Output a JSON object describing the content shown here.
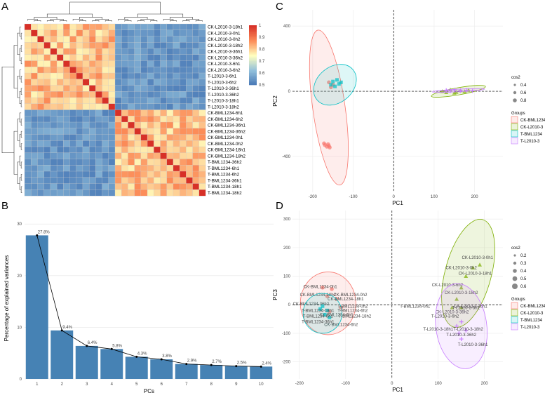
{
  "panel_labels": {
    "a": "A",
    "b": "B",
    "c": "C",
    "d": "D"
  },
  "chart_data": [
    {
      "id": "A",
      "type": "heatmap",
      "title": "",
      "colorbar": {
        "min": 0.5,
        "max": 1,
        "ticks": [
          "1",
          "0.9",
          "0.8",
          "0.7",
          "0.6",
          "0.5"
        ],
        "colors": [
          "#4575b4",
          "#91bfdb",
          "#ffffbf",
          "#fc8d59",
          "#d73027"
        ]
      },
      "rows": [
        "CK-L2010-3-18h1",
        "CK-L2010-3-0h1",
        "CK-L2010-3-0h2",
        "CK-L2010-3-18h2",
        "CK-L2010-3-36h1",
        "CK-L2010-3-36h2",
        "CK-L2010-3-6h1",
        "CK-L2010-3-6h2",
        "T-L2010-3-6h1",
        "T-L2010-3-6h2",
        "T-L2010-3-36h1",
        "T-L2010-3-36h2",
        "T-L2010-3-18h1",
        "T-L2010-3-18h2",
        "CK-BML1234-6h1",
        "CK-BML1234-6h2",
        "CK-BML1234-36h1",
        "CK-BML1234-36h2",
        "CK-BML1234-0h1",
        "CK-BML1234-0h2",
        "CK-BML1234-18h1",
        "CK-BML1234-18h2",
        "T-BML1234-36h2",
        "T-BML1234-6h1",
        "T-BML1234-6h2",
        "T-BML1234-36h1",
        "T-BML1234-18h1",
        "T-BML1234-18h2"
      ],
      "clusters": {
        "group1_size": 14,
        "group2_size": 14,
        "diag": 1.0,
        "within_cluster": 0.82,
        "between_cluster": 0.56
      }
    },
    {
      "id": "B",
      "type": "bar",
      "xlabel": "PCs",
      "ylabel": "Percentage of explained variances",
      "categories": [
        "1",
        "2",
        "3",
        "4",
        "5",
        "6",
        "7",
        "8",
        "9",
        "10"
      ],
      "values": [
        27.8,
        9.4,
        6.4,
        5.8,
        4.3,
        3.8,
        2.9,
        2.7,
        2.5,
        2.4
      ],
      "data_labels": [
        "27.8%",
        "9.4%",
        "6.4%",
        "5.8%",
        "4.3%",
        "3.8%",
        "2.9%",
        "2.7%",
        "2.5%",
        "2.4%"
      ],
      "ylim": [
        0,
        30
      ],
      "yticks": [
        "0",
        "10",
        "20",
        "30"
      ],
      "bar_color": "#4682b4"
    },
    {
      "id": "C",
      "type": "scatter",
      "xlabel": "PC1",
      "ylabel": "PC2",
      "xlim": [
        -250,
        270
      ],
      "ylim": [
        -620,
        500
      ],
      "xticks": [
        -200,
        -100,
        0,
        100,
        200
      ],
      "xtick_labels": [
        "-200",
        "-100",
        "0",
        "100",
        "200"
      ],
      "yticks": [
        -400,
        0,
        400
      ],
      "ytick_labels": [
        "-400",
        "0",
        "400"
      ],
      "legend_size_title": "cos2",
      "legend_size_labels": [
        "0.4",
        "0.6",
        "0.8"
      ],
      "legend_group_title": "Groups",
      "groups": [
        {
          "name": "CK-BML1234",
          "color": "#f8766d",
          "ellipse": {
            "cx": -160,
            "cy": -100,
            "rx": 40,
            "ry": 480,
            "angle": -8
          },
          "points": [
            [
              -170,
              -330
            ],
            [
              -165,
              -340
            ],
            [
              -162,
              -325
            ],
            [
              -160,
              -335
            ],
            [
              -158,
              -345
            ],
            [
              -172,
              -320
            ],
            [
              -150,
              40
            ],
            [
              -160,
              55
            ],
            [
              -155,
              25
            ]
          ]
        },
        {
          "name": "CK-L2010-3",
          "color": "#7cae00",
          "ellipse": {
            "cx": 160,
            "cy": 0,
            "rx": 68,
            "ry": 22,
            "angle": -10
          },
          "points": [
            [
              120,
              0
            ],
            [
              140,
              10
            ],
            [
              155,
              -5
            ],
            [
              165,
              5
            ],
            [
              175,
              0
            ],
            [
              150,
              -10
            ],
            [
              185,
              8
            ],
            [
              130,
              -6
            ]
          ]
        },
        {
          "name": "T-BML1234",
          "color": "#00bfc4",
          "ellipse": {
            "cx": -145,
            "cy": 40,
            "rx": 58,
            "ry": 110,
            "angle": -40
          },
          "points": [
            [
              -150,
              60
            ],
            [
              -140,
              70
            ],
            [
              -135,
              45
            ],
            [
              -145,
              30
            ],
            [
              -130,
              55
            ],
            [
              -155,
              40
            ]
          ]
        },
        {
          "name": "T-L2010-3",
          "color": "#c77cff",
          "ellipse": {
            "cx": 160,
            "cy": 5,
            "rx": 65,
            "ry": 8,
            "angle": -3
          },
          "points": [
            [
              130,
              5
            ],
            [
              150,
              8
            ],
            [
              165,
              4
            ],
            [
              180,
              6
            ],
            [
              195,
              3
            ],
            [
              140,
              2
            ]
          ]
        }
      ]
    },
    {
      "id": "D",
      "type": "scatter",
      "xlabel": "PC1",
      "ylabel": "PC3",
      "xlim": [
        -215,
        240
      ],
      "ylim": [
        -260,
        330
      ],
      "xticks": [
        -200,
        -100,
        0,
        100,
        200
      ],
      "xtick_labels": [
        "-200",
        "-100",
        "0",
        "100",
        "200"
      ],
      "yticks": [
        -200,
        -100,
        0,
        100,
        200,
        300
      ],
      "ytick_labels": [
        "-200",
        "-100",
        "0",
        "100",
        "200",
        "300"
      ],
      "legend_size_title": "cos2",
      "legend_size_labels": [
        "0.2",
        "0.3",
        "0.4",
        "0.5",
        "0.6"
      ],
      "legend_group_title": "Groups",
      "groups": [
        {
          "name": "CK-BML1234",
          "color": "#f8766d",
          "ellipse": {
            "cx": -138,
            "cy": 5,
            "rx": 60,
            "ry": 110,
            "angle": 0
          },
          "points": [
            [
              -150,
              60
            ],
            [
              -130,
              55
            ],
            [
              -140,
              30
            ],
            [
              -120,
              20
            ],
            [
              -110,
              -10
            ],
            [
              -135,
              -25
            ]
          ],
          "labels": [
            [
              -155,
              58,
              "CK-BML1234-0h1"
            ],
            [
              -160,
              30,
              "CK-BML1234-18h2"
            ],
            [
              -90,
              30,
              "CK-BML1234-0h2"
            ],
            [
              -100,
              15,
              "CK-BML1234-18h1"
            ],
            [
              -175,
              -2,
              "CK-BML1234-36h2"
            ],
            [
              -120,
              -40,
              "CK-BML1234-6h1"
            ],
            [
              -110,
              -75,
              "CK-BML1234-6h2"
            ]
          ]
        },
        {
          "name": "CK-L2010-3",
          "color": "#7cae00",
          "ellipse": {
            "cx": 165,
            "cy": 110,
            "rx": 50,
            "ry": 195,
            "angle": 15
          },
          "points": [
            [
              190,
              140
            ],
            [
              175,
              130
            ],
            [
              160,
              100
            ],
            [
              150,
              60
            ],
            [
              140,
              20
            ],
            [
              150,
              -10
            ],
            [
              130,
              -10
            ]
          ],
          "labels": [
            [
              185,
              160,
              "CK-L2010-3-0h1"
            ],
            [
              150,
              125,
              "CK-L2010-3-0h2"
            ],
            [
              180,
              105,
              "CK-L2010-3-18h1"
            ],
            [
              120,
              65,
              "CK-L2010-3-6h2"
            ],
            [
              150,
              38,
              "CK-L2010-3-18h2"
            ],
            [
              170,
              -10,
              "CK-L2010-3-36h1"
            ],
            [
              130,
              -30,
              "CK-L2010-3-36h2"
            ]
          ]
        },
        {
          "name": "T-BML1234",
          "color": "#00bfc4",
          "ellipse": {
            "cx": -150,
            "cy": -30,
            "rx": 42,
            "ry": 70,
            "angle": 0
          },
          "points": [
            [
              -150,
              -5
            ],
            [
              -140,
              -20
            ],
            [
              -145,
              -35
            ],
            [
              -155,
              -15
            ],
            [
              -135,
              -45
            ]
          ],
          "labels": [
            [
              -85,
              -10,
              "T-BML1234-0h2"
            ],
            [
              50,
              -10,
              "T-BML1234-0h1"
            ],
            [
              -160,
              -25,
              "T-BML1234-18h1"
            ],
            [
              -85,
              -25,
              "T-BML1234-6h2"
            ],
            [
              -160,
              -45,
              "T-BML1234-6h1"
            ],
            [
              -80,
              -45,
              "T-BML1234-18h2"
            ],
            [
              -160,
              -65,
              "T-BML1234-36h1"
            ]
          ]
        },
        {
          "name": "T-L2010-3",
          "color": "#c77cff",
          "ellipse": {
            "cx": 150,
            "cy": -75,
            "rx": 55,
            "ry": 150,
            "angle": -8
          },
          "points": [
            [
              150,
              -60
            ],
            [
              140,
              -75
            ],
            [
              160,
              -90
            ],
            [
              145,
              -100
            ],
            [
              150,
              -120
            ]
          ],
          "labels": [
            [
              160,
              -15,
              "T-L2010-3-6h1"
            ],
            [
              115,
              -45,
              "T-L2010-3-6h2"
            ],
            [
              100,
              -90,
              "T-L2010-3-18h1"
            ],
            [
              165,
              -90,
              "T-L2010-3-18h2"
            ],
            [
              150,
              -110,
              "T-L2010-3-36h2"
            ],
            [
              175,
              -145,
              "T-L2010-3-36h1"
            ]
          ]
        }
      ]
    }
  ]
}
